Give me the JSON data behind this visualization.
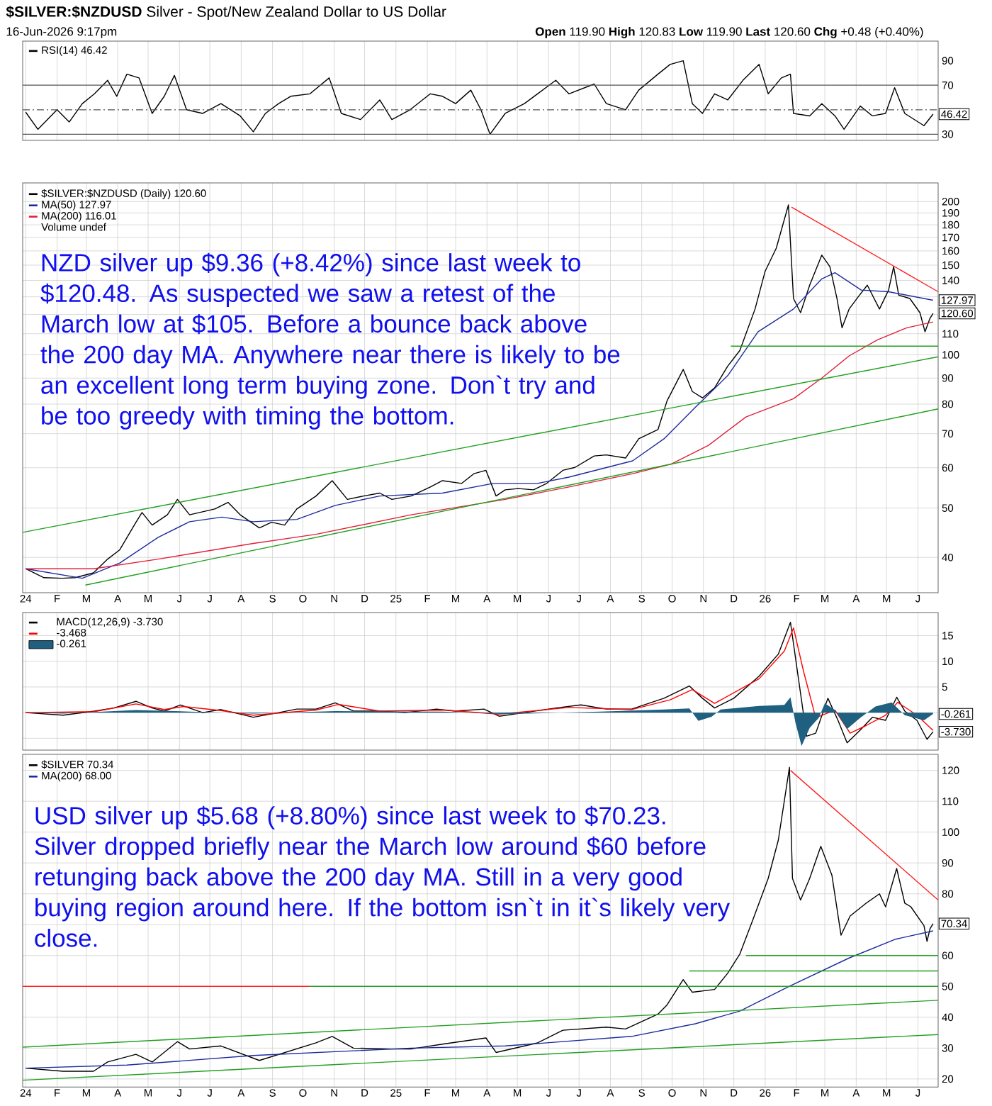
{
  "chart_data": [
    {
      "type": "line",
      "title": "**$SILVER:$NZDUSD** Silver - Spot/New Zealand Dollar to US Dollar",
      "subtitle": "16-Jun-2026 9:17pm",
      "annotations": [
        "**Open** 119.90 **High** 120.83 **Low** 119.90 **Last** 120.60 **Chg** +0.48 (+0.40%)",
        {
          "text": "46.42",
          "x": "2026-06-16",
          "y": 46.42
        }
      ],
      "xlim": [
        "2023-12-29",
        "2026-06-21"
      ],
      "xticks": [
        {
          "value": "2024-01-01",
          "label": null
        },
        {
          "value": "2024-02-01",
          "label": null
        },
        {
          "value": "2024-03-01",
          "label": null
        },
        {
          "value": "2024-04-01",
          "label": null
        },
        {
          "value": "2024-05-01",
          "label": null
        },
        {
          "value": "2024-06-01",
          "label": null
        },
        {
          "value": "2024-07-01",
          "label": null
        },
        {
          "value": "2024-08-01",
          "label": null
        },
        {
          "value": "2024-09-01",
          "label": null
        },
        {
          "value": "2024-10-01",
          "label": null
        },
        {
          "value": "2024-11-01",
          "label": null
        },
        {
          "value": "2024-12-01",
          "label": null
        },
        {
          "value": "2025-01-01",
          "label": null
        },
        {
          "value": "2025-02-01",
          "label": null
        },
        {
          "value": "2025-03-01",
          "label": null
        },
        {
          "value": "2025-04-01",
          "label": null
        },
        {
          "value": "2025-05-01",
          "label": null
        },
        {
          "value": "2025-06-01",
          "label": null
        },
        {
          "value": "2025-07-01",
          "label": null
        },
        {
          "value": "2025-08-01",
          "label": null
        },
        {
          "value": "2025-09-01",
          "label": null
        },
        {
          "value": "2025-10-01",
          "label": null
        },
        {
          "value": "2025-11-01",
          "label": null
        },
        {
          "value": "2025-12-01",
          "label": null
        },
        {
          "value": "2026-01-01",
          "label": null
        },
        {
          "value": "2026-02-01",
          "label": null
        },
        {
          "value": "2026-03-01",
          "label": null
        },
        {
          "value": "2026-04-01",
          "label": null
        },
        {
          "value": "2026-05-01",
          "label": null
        },
        {
          "value": "2026-06-01",
          "label": null
        }
      ],
      "ylim": [
        25,
        106
      ],
      "yticks": [
        30,
        {
          "value": 50,
          "label": null
        },
        70,
        90
      ],
      "grid": "x",
      "tick_labels": "y",
      "legend": "top left",
      "ref_lines": [
        {
          "axis": "y",
          "value": 70,
          "color": "#555555"
        },
        {
          "axis": "y",
          "value": 30,
          "color": "#555555"
        },
        {
          "axis": "y",
          "value": 50,
          "color": "#555555",
          "line_style": "dashed"
        }
      ],
      "series": [
        {
          "name": "RSI(14) 46.42",
          "color": "#000000",
          "x": [
            "2024-01-01",
            "2024-01-13",
            "2024-02-01",
            "2024-02-13",
            "2024-02-26",
            "2024-03-09",
            "2024-03-22",
            "2024-03-31",
            "2024-04-10",
            "2024-04-22",
            "2024-05-05",
            "2024-05-17",
            "2024-05-27",
            "2024-06-08",
            "2024-06-24",
            "2024-07-12",
            "2024-07-31",
            "2024-08-13",
            "2024-08-25",
            "2024-09-07",
            "2024-09-19",
            "2024-10-08",
            "2024-10-27",
            "2024-11-08",
            "2024-11-27",
            "2024-12-16",
            "2024-12-28",
            "2025-01-15",
            "2025-02-04",
            "2025-02-16",
            "2025-03-01",
            "2025-03-16",
            "2025-03-26",
            "2025-04-04",
            "2025-04-19",
            "2025-05-08",
            "2025-05-21",
            "2025-06-08",
            "2025-06-21",
            "2025-07-16",
            "2025-07-28",
            "2025-08-16",
            "2025-08-29",
            "2025-09-17",
            "2025-09-29",
            "2025-10-12",
            "2025-10-21",
            "2025-10-31",
            "2025-11-12",
            "2025-11-25",
            "2025-12-10",
            "2025-12-26",
            "2026-01-04",
            "2026-01-17",
            "2026-01-26",
            "2026-01-29",
            "2026-02-14",
            "2026-02-26",
            "2026-03-11",
            "2026-03-20",
            "2026-04-05",
            "2026-04-17",
            "2026-04-30",
            "2026-05-09",
            "2026-05-19",
            "2026-06-07",
            "2026-06-16"
          ],
          "values": [
            48,
            34,
            50,
            40,
            55,
            63,
            74,
            61,
            79,
            76,
            47,
            61,
            78,
            50,
            47,
            55,
            45,
            32,
            47,
            55,
            61,
            63,
            76,
            47,
            42,
            58,
            42,
            50,
            63,
            61,
            55,
            66,
            50,
            30,
            47,
            55,
            63,
            74,
            63,
            71,
            55,
            50,
            66,
            79,
            87,
            90,
            55,
            47,
            63,
            58,
            74,
            87,
            63,
            76,
            79,
            47,
            45,
            55,
            45,
            34,
            53,
            45,
            47,
            68,
            47,
            37,
            46.42
          ]
        }
      ]
    },
    {
      "type": "line",
      "log": true,
      "annotations": [
        "Volume undef",
        "NZD silver up $9.36 (+8.42%) since last week to $120.48. As suspected we saw a retest of the March low at $105. Before a bounce back above the 200 day MA. Anywhere near there is likely to be an excellent long term buying zone. Don`t try and be too greedy with timing the bottom.",
        {
          "text": "127.97",
          "x": "2026-06-16",
          "y": 127.97
        },
        {
          "text": "120.60",
          "x": "2026-06-16",
          "y": 120.6
        }
      ],
      "xlim": [
        "2023-12-29",
        "2026-06-21"
      ],
      "xticks": [
        {
          "value": "2024-01-01",
          "label": "24"
        },
        {
          "value": "2024-02-01",
          "label": "F"
        },
        {
          "value": "2024-03-01",
          "label": "M"
        },
        {
          "value": "2024-04-01",
          "label": "A"
        },
        {
          "value": "2024-05-01",
          "label": "M"
        },
        {
          "value": "2024-06-01",
          "label": "J"
        },
        {
          "value": "2024-07-01",
          "label": "J"
        },
        {
          "value": "2024-08-01",
          "label": "A"
        },
        {
          "value": "2024-09-01",
          "label": "S"
        },
        {
          "value": "2024-10-01",
          "label": "O"
        },
        {
          "value": "2024-11-01",
          "label": "N"
        },
        {
          "value": "2024-12-01",
          "label": "D"
        },
        {
          "value": "2025-01-01",
          "label": "25"
        },
        {
          "value": "2025-02-01",
          "label": "F"
        },
        {
          "value": "2025-03-01",
          "label": "M"
        },
        {
          "value": "2025-04-01",
          "label": "A"
        },
        {
          "value": "2025-05-01",
          "label": "M"
        },
        {
          "value": "2025-06-01",
          "label": "J"
        },
        {
          "value": "2025-07-01",
          "label": "J"
        },
        {
          "value": "2025-08-01",
          "label": "A"
        },
        {
          "value": "2025-09-01",
          "label": "S"
        },
        {
          "value": "2025-10-01",
          "label": "O"
        },
        {
          "value": "2025-11-01",
          "label": "N"
        },
        {
          "value": "2025-12-01",
          "label": "D"
        },
        {
          "value": "2026-01-01",
          "label": "26"
        },
        {
          "value": "2026-02-01",
          "label": "F"
        },
        {
          "value": "2026-03-01",
          "label": "M"
        },
        {
          "value": "2026-04-01",
          "label": "A"
        },
        {
          "value": "2026-05-01",
          "label": "M"
        },
        {
          "value": "2026-06-01",
          "label": "J"
        }
      ],
      "ylim": [
        34.1,
        217.6
      ],
      "yticks": [
        40,
        50,
        60,
        70,
        80,
        90,
        100,
        110,
        {
          "value": 120,
          "label": null
        },
        {
          "value": 130,
          "label": null
        },
        140,
        150,
        160,
        170,
        180,
        190,
        200
      ],
      "grid": true,
      "legend": "top left",
      "series": [
        {
          "name": "$SILVER:$NZDUSD (Daily) 120.60",
          "color": "#000000",
          "x": [
            "2024-01-01",
            "2024-01-19",
            "2024-02-06",
            "2024-02-19",
            "2024-03-08",
            "2024-03-22",
            "2024-04-03",
            "2024-04-19",
            "2024-04-25",
            "2024-05-05",
            "2024-05-20",
            "2024-05-30",
            "2024-06-11",
            "2024-07-06",
            "2024-07-19",
            "2024-07-31",
            "2024-08-19",
            "2024-08-31",
            "2024-09-13",
            "2024-09-25",
            "2024-10-14",
            "2024-10-30",
            "2024-11-14",
            "2024-11-30",
            "2024-12-16",
            "2024-12-28",
            "2025-01-16",
            "2025-02-04",
            "2025-02-16",
            "2025-03-07",
            "2025-03-19",
            "2025-03-31",
            "2025-04-10",
            "2025-04-19",
            "2025-05-02",
            "2025-05-17",
            "2025-05-30",
            "2025-06-15",
            "2025-06-27",
            "2025-07-16",
            "2025-07-28",
            "2025-08-16",
            "2025-08-29",
            "2025-09-17",
            "2025-09-26",
            "2025-10-12",
            "2025-10-21",
            "2025-10-31",
            "2025-11-12",
            "2025-11-25",
            "2025-12-07",
            "2025-12-22",
            "2026-01-01",
            "2026-01-12",
            "2026-01-24",
            "2026-01-29",
            "2026-02-05",
            "2026-02-14",
            "2026-02-26",
            "2026-03-06",
            "2026-03-13",
            "2026-03-18",
            "2026-03-25",
            "2026-04-03",
            "2026-04-12",
            "2026-04-24",
            "2026-05-03",
            "2026-05-08",
            "2026-05-13",
            "2026-05-24",
            "2026-06-03",
            "2026-06-08",
            "2026-06-13",
            "2026-06-16"
          ],
          "values": [
            38.0,
            36.5,
            36.4,
            36.5,
            37.3,
            39.7,
            41.4,
            46.9,
            49.0,
            46.3,
            48.5,
            52.0,
            48.5,
            49.8,
            51.3,
            48.5,
            45.7,
            46.9,
            46.3,
            49.8,
            52.8,
            56.6,
            52.0,
            52.8,
            53.5,
            52.0,
            52.8,
            55.0,
            56.6,
            55.9,
            58.4,
            59.3,
            52.8,
            54.3,
            54.6,
            54.3,
            55.9,
            59.3,
            60.1,
            63.3,
            63.6,
            62.7,
            68.4,
            71.3,
            81.2,
            93.6,
            84.7,
            82.3,
            86.1,
            95.0,
            102,
            123,
            146,
            162,
            197,
            129,
            121,
            137,
            157,
            149,
            129,
            113,
            123,
            130,
            137,
            123,
            134,
            149,
            131,
            129,
            121,
            111,
            118,
            120.6
          ]
        },
        {
          "name": "MA(50) 127.97",
          "color": "#1c2c9c",
          "x": [
            "2024-01-01",
            "2024-02-26",
            "2024-04-03",
            "2024-05-11",
            "2024-06-11",
            "2024-07-13",
            "2024-08-13",
            "2024-09-25",
            "2024-11-02",
            "2024-12-16",
            "2025-02-16",
            "2025-04-07",
            "2025-05-21",
            "2025-06-21",
            "2025-08-23",
            "2025-09-23",
            "2025-10-24",
            "2025-11-25",
            "2025-12-25",
            "2026-01-29",
            "2026-02-26",
            "2026-03-11",
            "2026-04-06",
            "2026-05-03",
            "2026-06-16"
          ],
          "values": [
            38,
            36.4,
            39,
            43.8,
            47,
            48,
            47,
            47.5,
            50.6,
            52.8,
            53.5,
            55.9,
            55.9,
            57.5,
            61.9,
            68.4,
            78.9,
            91,
            111,
            123,
            141,
            145,
            134,
            133,
            127.97
          ]
        },
        {
          "name": "MA(200) 116.01",
          "color": "#e0203a",
          "x": [
            "2024-01-01",
            "2024-03-08",
            "2024-05-11",
            "2024-08-13",
            "2024-10-14",
            "2025-01-16",
            "2025-04-19",
            "2025-06-21",
            "2025-08-23",
            "2025-09-30",
            "2025-11-06",
            "2025-12-13",
            "2026-01-29",
            "2026-02-26",
            "2026-03-25",
            "2026-04-22",
            "2026-05-21",
            "2026-06-16"
          ],
          "values": [
            38,
            38,
            39.7,
            42.6,
            44.4,
            48.5,
            52,
            55,
            58.4,
            61,
            66.4,
            75.5,
            82,
            90,
            99.5,
            107,
            113,
            116.01
          ]
        },
        {
          "color": "#22a022",
          "x": [
            "2023-12-29",
            "2026-06-21"
          ],
          "values": [
            44.8,
            99.1
          ]
        },
        {
          "color": "#22a022",
          "x": [
            "2024-02-29",
            "2026-06-21"
          ],
          "values": [
            35.3,
            78.3
          ]
        },
        {
          "color": "#22a022",
          "x": [
            "2025-11-28",
            "2026-06-21"
          ],
          "values": [
            104,
            104
          ]
        },
        {
          "color": "#ff2020",
          "x": [
            "2026-01-27",
            "2026-06-21"
          ],
          "values": [
            195,
            133
          ]
        }
      ]
    },
    {
      "type": "line",
      "annotations": [
        {
          "text": "-0.261",
          "x": "2026-06-16",
          "y": -0.261
        },
        {
          "text": "-3.730",
          "x": "2026-06-16",
          "y": -3.73
        }
      ],
      "xlim": [
        "2023-12-29",
        "2026-06-21"
      ],
      "xticks": [
        {
          "value": "2024-01-01",
          "label": null
        },
        {
          "value": "2024-02-01",
          "label": null
        },
        {
          "value": "2024-03-01",
          "label": null
        },
        {
          "value": "2024-04-01",
          "label": null
        },
        {
          "value": "2024-05-01",
          "label": null
        },
        {
          "value": "2024-06-01",
          "label": null
        },
        {
          "value": "2024-07-01",
          "label": null
        },
        {
          "value": "2024-08-01",
          "label": null
        },
        {
          "value": "2024-09-01",
          "label": null
        },
        {
          "value": "2024-10-01",
          "label": null
        },
        {
          "value": "2024-11-01",
          "label": null
        },
        {
          "value": "2024-12-01",
          "label": null
        },
        {
          "value": "2025-01-01",
          "label": null
        },
        {
          "value": "2025-02-01",
          "label": null
        },
        {
          "value": "2025-03-01",
          "label": null
        },
        {
          "value": "2025-04-01",
          "label": null
        },
        {
          "value": "2025-05-01",
          "label": null
        },
        {
          "value": "2025-06-01",
          "label": null
        },
        {
          "value": "2025-07-01",
          "label": null
        },
        {
          "value": "2025-08-01",
          "label": null
        },
        {
          "value": "2025-09-01",
          "label": null
        },
        {
          "value": "2025-10-01",
          "label": null
        },
        {
          "value": "2025-11-01",
          "label": null
        },
        {
          "value": "2025-12-01",
          "label": null
        },
        {
          "value": "2026-01-01",
          "label": null
        },
        {
          "value": "2026-02-01",
          "label": null
        },
        {
          "value": "2026-03-01",
          "label": null
        },
        {
          "value": "2026-04-01",
          "label": null
        },
        {
          "value": "2026-05-01",
          "label": null
        },
        {
          "value": "2026-06-01",
          "label": null
        }
      ],
      "ylim": [
        -7.3,
        19.5
      ],
      "yticks": [
        {
          "value": -5,
          "label": null
        },
        {
          "value": 0,
          "label": null
        },
        5,
        10,
        15
      ],
      "grid": true,
      "tick_labels": "y",
      "legend": "top left",
      "series": [
        {
          "name": "MACD(12,26,9) -3.730",
          "color": "#000000",
          "x": [
            "2024-01-01",
            "2024-02-07",
            "2024-03-09",
            "2024-03-28",
            "2024-04-19",
            "2024-05-05",
            "2024-05-17",
            "2024-06-02",
            "2024-06-24",
            "2024-07-12",
            "2024-08-13",
            "2024-09-07",
            "2024-09-25",
            "2024-10-14",
            "2024-11-02",
            "2024-11-20",
            "2024-12-16",
            "2025-01-10",
            "2025-02-10",
            "2025-03-01",
            "2025-03-29",
            "2025-04-13",
            "2025-05-08",
            "2025-06-08",
            "2025-07-03",
            "2025-07-28",
            "2025-08-22",
            "2025-09-23",
            "2025-10-18",
            "2025-10-31",
            "2025-11-12",
            "2025-12-01",
            "2025-12-26",
            "2026-01-14",
            "2026-01-26",
            "2026-02-03",
            "2026-02-11",
            "2026-02-20",
            "2026-03-04",
            "2026-03-14",
            "2026-03-23",
            "2026-04-05",
            "2026-04-17",
            "2026-04-30",
            "2026-05-11",
            "2026-05-19",
            "2026-05-31",
            "2026-06-10",
            "2026-06-16"
          ],
          "values": [
            0,
            -0.5,
            0.3,
            0.9,
            2.2,
            0.9,
            0.3,
            1.5,
            0,
            0.6,
            -0.9,
            0,
            0.7,
            0.7,
            1.9,
            0.3,
            0.3,
            0,
            0.7,
            0.3,
            0.7,
            -0.7,
            0,
            0.9,
            1.5,
            0.7,
            0.7,
            2.8,
            5.2,
            2.8,
            0.9,
            2.8,
            7.1,
            11.4,
            17.6,
            6.5,
            -4.6,
            -4,
            2.8,
            -1.5,
            -5.9,
            -3.4,
            -0.9,
            -1.5,
            3,
            0.3,
            -1.5,
            -5.2,
            -3.73
          ]
        },
        {
          "name": "-3.468",
          "color": "#ff0000",
          "x": [
            "2024-01-01",
            "2024-03-09",
            "2024-04-19",
            "2024-05-17",
            "2024-06-05",
            "2024-07-12",
            "2024-08-13",
            "2024-10-14",
            "2024-11-05",
            "2024-12-16",
            "2025-02-16",
            "2025-04-13",
            "2025-06-21",
            "2025-08-22",
            "2025-09-29",
            "2025-10-21",
            "2025-11-12",
            "2025-12-26",
            "2026-01-20",
            "2026-01-29",
            "2026-02-08",
            "2026-02-20",
            "2026-03-11",
            "2026-03-26",
            "2026-04-11",
            "2026-04-30",
            "2026-05-12",
            "2026-05-31",
            "2026-06-16"
          ],
          "values": [
            0,
            0.2,
            1.7,
            0.6,
            1.2,
            0.4,
            -0.5,
            0.5,
            1.6,
            0.3,
            0.5,
            -0.3,
            1.0,
            0.6,
            2.5,
            4.5,
            1.8,
            6.6,
            12,
            16.5,
            8,
            -1.0,
            0.5,
            -4.0,
            -2.5,
            -0.5,
            2,
            -0.5,
            -3.468
          ]
        },
        {
          "name": "-0.261",
          "type": "area",
          "color": "#1f5f80",
          "x": [
            "2024-01-01",
            "2024-02-07",
            "2024-04-19",
            "2024-06-11",
            "2024-08-13",
            "2024-11-02",
            "2025-02-16",
            "2025-04-19",
            "2025-07-22",
            "2025-09-23",
            "2025-10-18",
            "2025-10-27",
            "2025-11-09",
            "2025-11-18",
            "2025-12-26",
            "2026-01-20",
            "2026-01-26",
            "2026-01-31",
            "2026-02-06",
            "2026-02-14",
            "2026-02-23",
            "2026-03-01",
            "2026-03-11",
            "2026-03-23",
            "2026-04-05",
            "2026-04-20",
            "2026-05-06",
            "2026-05-19",
            "2026-06-07",
            "2026-06-16"
          ],
          "values": [
            0,
            -0.2,
            0.5,
            0.2,
            -0.2,
            0.3,
            0.2,
            -0.3,
            0.2,
            0.6,
            0.8,
            -1.6,
            -0.8,
            0.6,
            1.3,
            1.5,
            3.0,
            -2,
            -6.5,
            -3,
            -1,
            1.8,
            0.5,
            -3.2,
            -1,
            1.2,
            2,
            -0.5,
            -1.5,
            -0.261
          ]
        }
      ]
    },
    {
      "type": "line",
      "annotations": [
        "USD silver up $5.68 (+8.80%) since last week to $70.23. Silver dropped briefly near the March low around $60 before retunging back above the 200 day MA. Still in a very good buying region around here. If the bottom isn`t in it`s likely very close.",
        {
          "text": "70.34",
          "x": "2026-06-16",
          "y": 70.34
        }
      ],
      "xlim": [
        "2023-12-29",
        "2026-06-21"
      ],
      "xticks": [
        {
          "value": "2024-01-01",
          "label": "24"
        },
        {
          "value": "2024-02-01",
          "label": "F"
        },
        {
          "value": "2024-03-01",
          "label": "M"
        },
        {
          "value": "2024-04-01",
          "label": "A"
        },
        {
          "value": "2024-05-01",
          "label": "M"
        },
        {
          "value": "2024-06-01",
          "label": "J"
        },
        {
          "value": "2024-07-01",
          "label": "J"
        },
        {
          "value": "2024-08-01",
          "label": "A"
        },
        {
          "value": "2024-09-01",
          "label": "S"
        },
        {
          "value": "2024-10-01",
          "label": "O"
        },
        {
          "value": "2024-11-01",
          "label": "N"
        },
        {
          "value": "2024-12-01",
          "label": "D"
        },
        {
          "value": "2025-01-01",
          "label": "25"
        },
        {
          "value": "2025-02-01",
          "label": "F"
        },
        {
          "value": "2025-03-01",
          "label": "M"
        },
        {
          "value": "2025-04-01",
          "label": "A"
        },
        {
          "value": "2025-05-01",
          "label": "M"
        },
        {
          "value": "2025-06-01",
          "label": "J"
        },
        {
          "value": "2025-07-01",
          "label": "J"
        },
        {
          "value": "2025-08-01",
          "label": "A"
        },
        {
          "value": "2025-09-01",
          "label": "S"
        },
        {
          "value": "2025-10-01",
          "label": "O"
        },
        {
          "value": "2025-11-01",
          "label": "N"
        },
        {
          "value": "2025-12-01",
          "label": "D"
        },
        {
          "value": "2026-01-01",
          "label": "26"
        },
        {
          "value": "2026-02-01",
          "label": "F"
        },
        {
          "value": "2026-03-01",
          "label": "M"
        },
        {
          "value": "2026-04-01",
          "label": "A"
        },
        {
          "value": "2026-05-01",
          "label": "M"
        },
        {
          "value": "2026-06-01",
          "label": "J"
        }
      ],
      "ylim": [
        17.4,
        125.2
      ],
      "yticks": [
        20,
        30,
        40,
        50,
        60,
        {
          "value": 70,
          "label": null
        },
        80,
        90,
        100,
        110,
        120
      ],
      "grid": true,
      "legend": "top left",
      "series": [
        {
          "name": "$SILVER 70.34",
          "color": "#000000",
          "x": [
            "2024-01-01",
            "2024-02-07",
            "2024-03-08",
            "2024-03-22",
            "2024-04-19",
            "2024-05-05",
            "2024-05-30",
            "2024-06-11",
            "2024-07-12",
            "2024-08-19",
            "2024-10-14",
            "2024-10-30",
            "2024-11-20",
            "2024-12-28",
            "2025-01-16",
            "2025-02-16",
            "2025-03-31",
            "2025-04-10",
            "2025-05-21",
            "2025-06-15",
            "2025-07-28",
            "2025-08-16",
            "2025-09-17",
            "2025-09-26",
            "2025-10-12",
            "2025-10-21",
            "2025-11-12",
            "2025-11-25",
            "2025-12-07",
            "2025-12-20",
            "2026-01-04",
            "2026-01-14",
            "2026-01-25",
            "2026-01-28",
            "2026-02-05",
            "2026-02-14",
            "2026-02-25",
            "2026-03-08",
            "2026-03-17",
            "2026-03-26",
            "2026-04-11",
            "2026-04-24",
            "2026-04-30",
            "2026-05-11",
            "2026-05-19",
            "2026-05-25",
            "2026-06-07",
            "2026-06-10",
            "2026-06-13",
            "2026-06-16"
          ],
          "values": [
            23.5,
            22.5,
            22.5,
            25.5,
            28,
            25.5,
            32.1,
            29.7,
            30.7,
            26,
            31.7,
            33.8,
            30,
            29.7,
            29.7,
            31.3,
            33.3,
            28.6,
            31.7,
            35.8,
            36.8,
            36.2,
            41,
            44,
            52.2,
            48.1,
            49,
            54.3,
            60.5,
            71.7,
            85,
            97.4,
            121,
            85,
            78,
            85,
            95.4,
            86,
            66.6,
            72.8,
            77,
            80,
            75.8,
            88.2,
            77,
            75.8,
            69.7,
            64.6,
            68.7,
            70.34
          ]
        },
        {
          "name": "MA(200) 68.00",
          "color": "#1c2c9c",
          "x": [
            "2024-01-01",
            "2024-04-10",
            "2024-08-13",
            "2025-01-16",
            "2025-04-19",
            "2025-08-22",
            "2025-10-24",
            "2025-12-07",
            "2026-01-26",
            "2026-03-25",
            "2026-05-10",
            "2026-06-16"
          ],
          "values": [
            23.5,
            24.5,
            27.6,
            30,
            30.7,
            33.8,
            37.9,
            42,
            50.2,
            59.2,
            65.3,
            68.0
          ]
        },
        {
          "color": "#22a022",
          "x": [
            "2023-12-29",
            "2026-06-21"
          ],
          "values": [
            30.3,
            45.5
          ]
        },
        {
          "color": "#22a022",
          "x": [
            "2023-12-29",
            "2026-06-21"
          ],
          "values": [
            19.6,
            34.4
          ]
        },
        {
          "color": "#ff2020",
          "x": [
            "2023-12-29",
            "2024-10-08"
          ],
          "values": [
            50,
            50
          ]
        },
        {
          "color": "#22a022",
          "x": [
            "2024-10-08",
            "2026-06-21"
          ],
          "values": [
            50,
            50
          ]
        },
        {
          "color": "#22a022",
          "x": [
            "2025-10-18",
            "2026-06-21"
          ],
          "values": [
            55,
            55
          ]
        },
        {
          "color": "#22a022",
          "x": [
            "2025-12-13",
            "2026-06-21"
          ],
          "values": [
            60,
            60
          ]
        },
        {
          "color": "#ff2020",
          "x": [
            "2026-01-26",
            "2026-06-21"
          ],
          "values": [
            120,
            78
          ]
        }
      ]
    }
  ]
}
